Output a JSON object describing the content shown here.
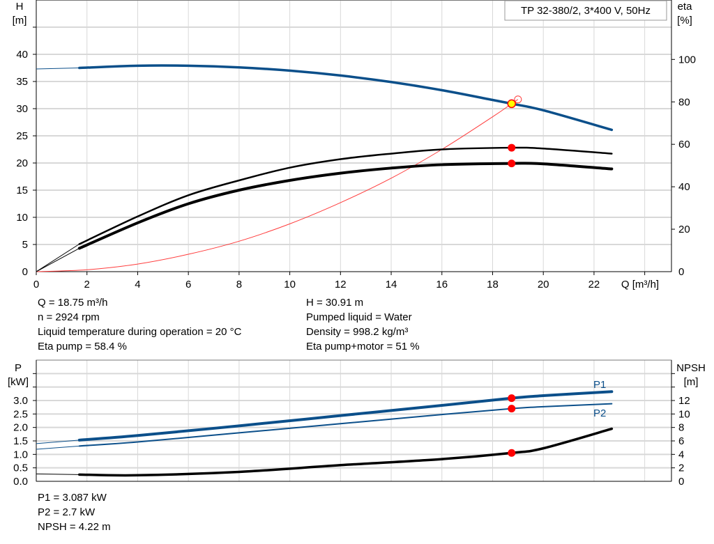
{
  "colors": {
    "head": "#0b4f8a",
    "power": "#0b4f8a",
    "efficiency": "#000000",
    "npsh": "#000000",
    "system_curve": "#ff3b3b",
    "duty_point": "#ff0000",
    "duty_point_head_fill": "#ffff00",
    "grid": "#d8d8d8"
  },
  "chart_data": [
    {
      "type": "line",
      "legend_box": "TP 32-380/2, 3*400 V, 50Hz",
      "xlabel": "Q [m³/h]",
      "ylabel_left": {
        "name": "H",
        "unit": "[m]"
      },
      "ylabel_right": {
        "name": "eta",
        "unit": "[%]"
      },
      "xlim": [
        0,
        25
      ],
      "ylim_left": [
        0,
        50
      ],
      "ylim_right": [
        0,
        128
      ],
      "x_ticks": [
        "0",
        "2",
        "4",
        "6",
        "8",
        "10",
        "12",
        "14",
        "16",
        "18",
        "20",
        "22"
      ],
      "y_ticks_left": [
        "0",
        "5",
        "10",
        "15",
        "20",
        "25",
        "30",
        "35",
        "40"
      ],
      "y_ticks_right": [
        "0",
        "20",
        "40",
        "60",
        "80",
        "100"
      ],
      "grid": true,
      "series": [
        {
          "key": "head",
          "axis": "left",
          "x": [
            0,
            1.7,
            4,
            6,
            8,
            10,
            12,
            14,
            16,
            18,
            18.75,
            20,
            22.7
          ],
          "y": [
            37.3,
            37.5,
            37.9,
            37.9,
            37.6,
            37.0,
            36.1,
            34.9,
            33.4,
            31.6,
            30.91,
            29.7,
            26.1
          ]
        },
        {
          "key": "eta_pump",
          "axis": "right",
          "x": [
            0,
            1.7,
            4,
            6,
            8,
            10,
            12,
            14,
            16,
            18.75,
            20,
            22.7
          ],
          "y": [
            0,
            13,
            26,
            36,
            43,
            49,
            53,
            55.6,
            57.6,
            58.4,
            58,
            55.6
          ]
        },
        {
          "key": "eta_pump_motor",
          "axis": "right",
          "x": [
            0,
            1.7,
            4,
            6,
            8,
            10,
            12,
            14,
            16,
            18.75,
            20,
            22.7
          ],
          "y": [
            0,
            11,
            23,
            32,
            38.4,
            43,
            46.4,
            48.8,
            50.4,
            51,
            50.8,
            48.4
          ]
        },
        {
          "key": "system_curve",
          "axis": "left",
          "x": [
            0,
            2,
            4,
            6,
            8,
            10,
            12,
            14,
            16,
            18,
            18.75,
            19
          ],
          "y": [
            0,
            0.35,
            1.4,
            3.2,
            5.6,
            8.8,
            12.7,
            17.2,
            22.5,
            28.5,
            30.91,
            31.7
          ]
        }
      ],
      "duty_point": {
        "q": 18.75,
        "h": 30.91,
        "eta_pump": 58.4,
        "eta_pump_motor": 51
      }
    },
    {
      "type": "line",
      "xlim": [
        0,
        25
      ],
      "ylim_left": [
        0,
        4.5
      ],
      "ylim_right": [
        0,
        18
      ],
      "ylabel_left": {
        "name": "P",
        "unit": "[kW]"
      },
      "ylabel_right": {
        "name": "NPSH",
        "unit": "[m]"
      },
      "y_ticks_left": [
        "0.0",
        "0.5",
        "1.0",
        "1.5",
        "2.0",
        "2.5",
        "3.0"
      ],
      "y_ticks_right": [
        "0",
        "2",
        "4",
        "6",
        "8",
        "10",
        "12"
      ],
      "grid": true,
      "series": [
        {
          "key": "p1",
          "name": "P1",
          "axis": "left",
          "x": [
            0,
            1.7,
            4,
            8,
            12,
            16,
            18.75,
            20,
            22.7
          ],
          "y": [
            1.4,
            1.53,
            1.7,
            2.06,
            2.44,
            2.82,
            3.087,
            3.18,
            3.33
          ]
        },
        {
          "key": "p2",
          "name": "P2",
          "axis": "left",
          "x": [
            0,
            1.7,
            4,
            8,
            12,
            16,
            18.75,
            20,
            22.7
          ],
          "y": [
            1.19,
            1.31,
            1.46,
            1.8,
            2.14,
            2.48,
            2.7,
            2.77,
            2.88
          ]
        },
        {
          "key": "npsh",
          "axis": "right",
          "x": [
            0,
            1.7,
            4,
            8,
            12,
            16,
            18.75,
            20,
            22.7
          ],
          "y": [
            1.1,
            1.0,
            0.9,
            1.4,
            2.4,
            3.3,
            4.22,
            4.9,
            7.8
          ]
        }
      ],
      "duty_point": {
        "q": 18.75,
        "p1": 3.087,
        "p2": 2.7,
        "npsh": 4.22
      }
    }
  ],
  "info_left": [
    "Q = 18.75 m³/h",
    "n = 2924 rpm",
    "Liquid temperature during operation = 20 °C",
    "Eta pump = 58.4 %"
  ],
  "info_right": [
    "H = 30.91 m",
    "Pumped liquid = Water",
    "Density = 998.2 kg/m³",
    "Eta pump+motor = 51 %"
  ],
  "info_bottom": [
    "P1 = 3.087 kW",
    "P2 = 2.7 kW",
    "NPSH = 4.22 m"
  ]
}
